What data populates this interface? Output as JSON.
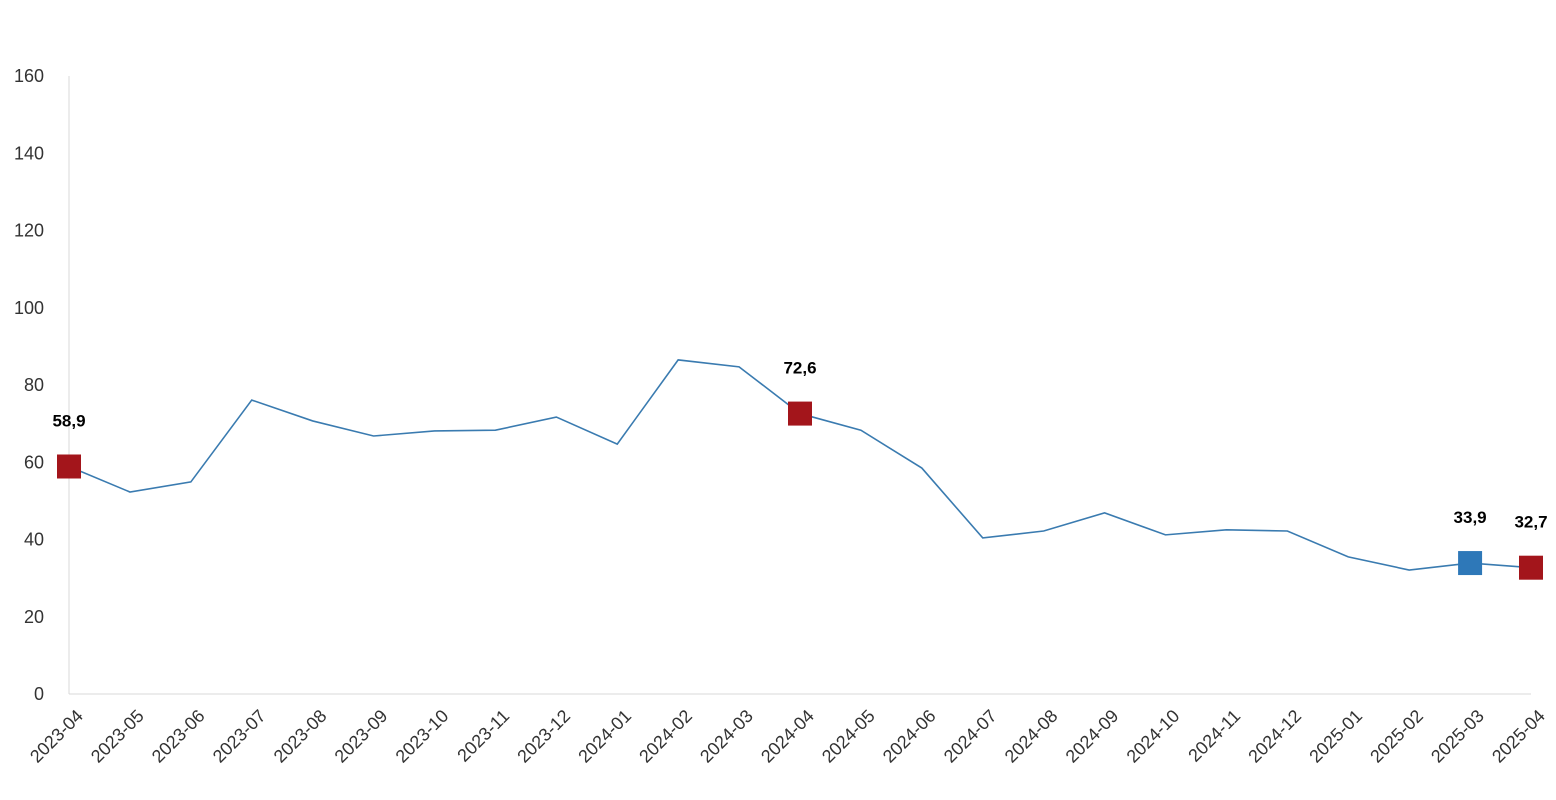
{
  "chart_data": {
    "type": "line",
    "categories": [
      "2023-04",
      "2023-05",
      "2023-06",
      "2023-07",
      "2023-08",
      "2023-09",
      "2023-10",
      "2023-11",
      "2023-12",
      "2024-01",
      "2024-02",
      "2024-03",
      "2024-04",
      "2024-05",
      "2024-06",
      "2024-07",
      "2024-08",
      "2024-09",
      "2024-10",
      "2024-11",
      "2024-12",
      "2025-01",
      "2025-02",
      "2025-03",
      "2025-04"
    ],
    "values": [
      58.9,
      52.3,
      54.9,
      76.1,
      70.7,
      66.8,
      68.1,
      68.3,
      71.7,
      64.7,
      86.5,
      84.7,
      72.6,
      68.3,
      58.5,
      40.4,
      42.2,
      46.9,
      41.2,
      42.5,
      42.2,
      35.5,
      32.1,
      33.9,
      32.7
    ],
    "value_labels": [
      "58,9",
      null,
      null,
      null,
      null,
      null,
      null,
      null,
      null,
      null,
      null,
      null,
      "72,6",
      null,
      null,
      null,
      null,
      null,
      null,
      null,
      null,
      null,
      null,
      "33,9",
      "32,7"
    ],
    "marker_colors": [
      "#a3151b",
      null,
      null,
      null,
      null,
      null,
      null,
      null,
      null,
      null,
      null,
      null,
      "#a3151b",
      null,
      null,
      null,
      null,
      null,
      null,
      null,
      null,
      null,
      null,
      "#2e78b8",
      "#a3151b"
    ],
    "color": "#3a7bb0",
    "ylim": [
      0,
      160
    ],
    "yticks": [
      0,
      20,
      40,
      60,
      80,
      100,
      120,
      140,
      160
    ],
    "grid": false
  }
}
